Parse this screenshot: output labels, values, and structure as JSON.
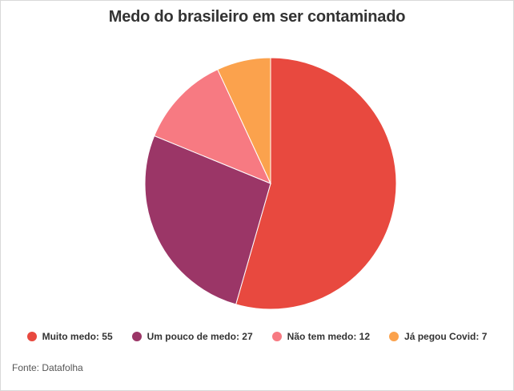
{
  "chart_data": {
    "type": "pie",
    "title": "Medo do brasileiro em ser contaminado",
    "categories": [
      "Muito medo",
      "Um pouco de medo",
      "Não tem medo",
      "Já pegou Covid"
    ],
    "values": [
      55,
      27,
      12,
      7
    ],
    "colors": [
      "#e8493f",
      "#9b3667",
      "#f77a82",
      "#fba24d"
    ],
    "legend_labels": [
      "Muito medo: 55",
      "Um pouco de medo: 27",
      "Não tem medo: 12",
      "Já pegou Covid: 7"
    ],
    "legend_position": "bottom"
  },
  "source": "Fonte: Datafolha"
}
